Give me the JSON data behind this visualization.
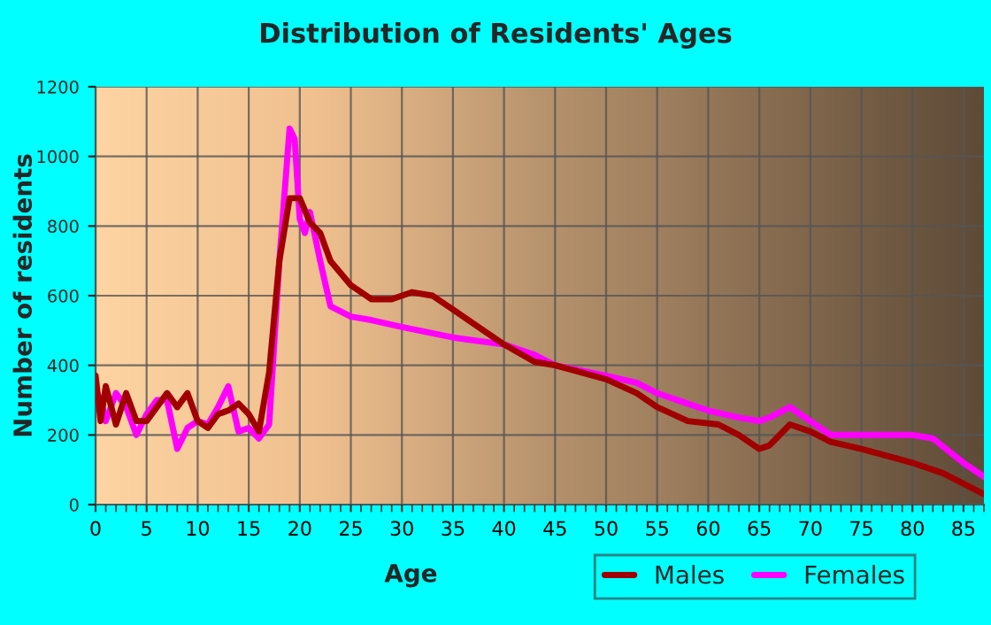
{
  "chart_data": {
    "type": "line",
    "title": "Distribution of Residents' Ages",
    "xlabel": "Age",
    "ylabel": "Number of residents",
    "xlim": [
      0,
      87
    ],
    "xticks": [
      0,
      5,
      10,
      15,
      20,
      25,
      30,
      35,
      40,
      45,
      50,
      55,
      60,
      65,
      70,
      75,
      80,
      85
    ],
    "ylim": [
      0,
      1200
    ],
    "yticks": [
      0,
      200,
      400,
      600,
      800,
      1000,
      1200
    ],
    "grid": true,
    "legend": "bottom right",
    "marker": "none",
    "line_style": "solid",
    "series": [
      {
        "name": "Males",
        "color": "#a00000",
        "x": [
          0,
          0.5,
          1,
          2,
          3,
          4,
          5,
          6,
          7,
          8,
          9,
          10,
          11,
          12,
          13,
          14,
          15,
          16,
          17,
          18,
          19,
          20,
          21,
          22,
          23,
          25,
          27,
          29,
          31,
          33,
          35,
          38,
          40,
          43,
          45,
          50,
          53,
          55,
          58,
          61,
          63,
          65,
          66,
          68,
          70,
          72,
          75,
          80,
          83,
          87
        ],
        "values": [
          370,
          240,
          340,
          230,
          320,
          240,
          240,
          280,
          320,
          280,
          320,
          240,
          220,
          260,
          270,
          290,
          260,
          210,
          380,
          700,
          880,
          880,
          810,
          780,
          700,
          630,
          590,
          590,
          610,
          600,
          560,
          500,
          460,
          410,
          400,
          360,
          320,
          280,
          240,
          230,
          200,
          160,
          170,
          230,
          210,
          180,
          160,
          120,
          90,
          30
        ]
      },
      {
        "name": "Females",
        "color": "#ff00ff",
        "x": [
          0,
          0.5,
          1,
          2,
          3,
          4,
          5,
          6,
          7,
          8,
          9,
          10,
          11,
          12,
          13,
          14,
          15,
          16,
          17,
          18,
          19,
          19.5,
          20,
          20.5,
          21,
          22,
          23,
          25,
          27,
          30,
          35,
          40,
          43,
          45,
          50,
          53,
          55,
          60,
          63,
          65,
          66,
          68,
          70,
          72,
          75,
          80,
          82,
          85,
          87
        ],
        "values": [
          330,
          300,
          240,
          320,
          280,
          200,
          260,
          300,
          300,
          160,
          220,
          240,
          230,
          280,
          340,
          210,
          220,
          190,
          230,
          700,
          1080,
          1050,
          820,
          780,
          840,
          700,
          570,
          540,
          530,
          510,
          480,
          460,
          430,
          400,
          370,
          350,
          320,
          270,
          250,
          240,
          250,
          280,
          240,
          200,
          200,
          200,
          190,
          120,
          80
        ]
      }
    ]
  }
}
